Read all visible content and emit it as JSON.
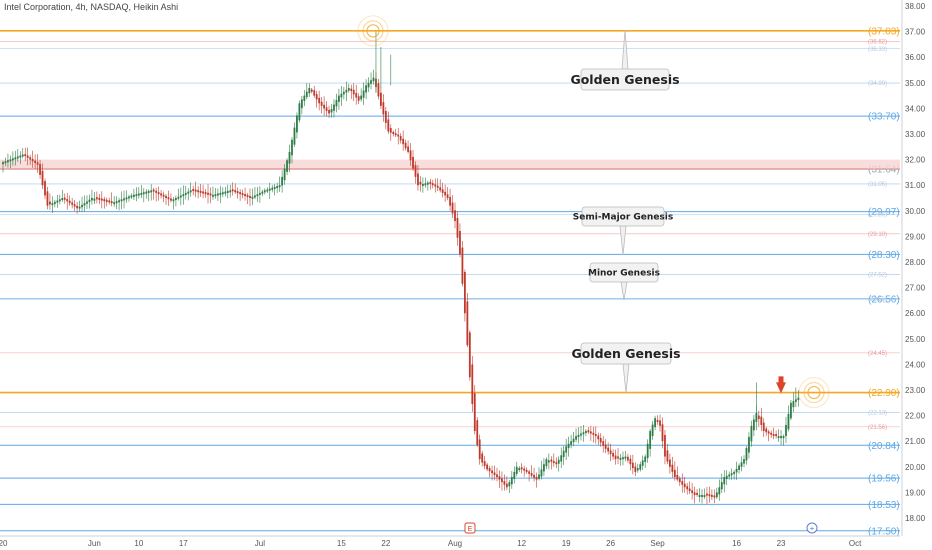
{
  "header": {
    "title": "Intel Corporation, 4h, NASDAQ, Heikin Ashi"
  },
  "colors": {
    "up": "#2e7d46",
    "down": "#c0392b",
    "orange": "#f5a623",
    "blue": "#5ea8e6",
    "red_line": "#e57373",
    "faint_blue": "#9cc6ee",
    "faint_red": "#f2a9a9"
  },
  "chart_data": {
    "type": "candlestick",
    "ylim": [
      17.5,
      38.0
    ],
    "y_ticks": [
      "38.00",
      "37.00",
      "36.00",
      "35.00",
      "34.00",
      "33.00",
      "32.00",
      "31.00",
      "30.00",
      "29.00",
      "28.00",
      "27.00",
      "26.00",
      "25.00",
      "24.00",
      "23.00",
      "22.00",
      "21.00",
      "20.00",
      "19.00",
      "18.00"
    ],
    "x_ticks": [
      {
        "label": "20",
        "i": 0
      },
      {
        "label": "Jun",
        "i": 37
      },
      {
        "label": "10",
        "i": 55
      },
      {
        "label": "17",
        "i": 73
      },
      {
        "label": "Jul",
        "i": 104
      },
      {
        "label": "15",
        "i": 137
      },
      {
        "label": "22",
        "i": 155
      },
      {
        "label": "Aug",
        "i": 183
      },
      {
        "label": "12",
        "i": 210
      },
      {
        "label": "19",
        "i": 228
      },
      {
        "label": "26",
        "i": 246
      },
      {
        "label": "Sep",
        "i": 265
      },
      {
        "label": "16",
        "i": 297
      },
      {
        "label": "23",
        "i": 315
      },
      {
        "label": "Oct",
        "i": 345
      }
    ],
    "levels": [
      {
        "value": 37.03,
        "label": "(37.03)",
        "style": "orange-bold"
      },
      {
        "value": 36.62,
        "label": "(36.62)",
        "style": "faint-red"
      },
      {
        "value": 36.33,
        "label": "(36.33)",
        "style": "faint-blue"
      },
      {
        "value": 34.99,
        "label": "(34.99)",
        "style": "faint-blue"
      },
      {
        "value": 33.7,
        "label": "(33.70)",
        "style": "blue-bold"
      },
      {
        "value": 31.64,
        "label": "(31.64)",
        "style": "zone-bold"
      },
      {
        "value": 31.05,
        "label": "(31.05)",
        "style": "faint-blue"
      },
      {
        "value": 29.97,
        "label": "(29.97)",
        "style": "blue-bold"
      },
      {
        "value": 29.86,
        "label": "(29.86)",
        "style": "faint-blue"
      },
      {
        "value": 29.1,
        "label": "(29.10)",
        "style": "faint-red"
      },
      {
        "value": 28.3,
        "label": "(28.30)",
        "style": "blue-bold"
      },
      {
        "value": 27.52,
        "label": "(27.52)",
        "style": "faint-blue"
      },
      {
        "value": 26.56,
        "label": "(26.56)",
        "style": "blue-bold"
      },
      {
        "value": 26.55,
        "label": "(26.55)",
        "style": "faint-blue"
      },
      {
        "value": 24.45,
        "label": "(24.45)",
        "style": "faint-red"
      },
      {
        "value": 22.9,
        "label": "(22.90)",
        "style": "orange-bold"
      },
      {
        "value": 22.13,
        "label": "(22.13)",
        "style": "faint-blue"
      },
      {
        "value": 21.56,
        "label": "(21.56)",
        "style": "faint-red"
      },
      {
        "value": 20.84,
        "label": "(20.84)",
        "style": "blue-bold"
      },
      {
        "value": 19.56,
        "label": "(19.56)",
        "style": "blue-bold"
      },
      {
        "value": 18.53,
        "label": "(18.53)",
        "style": "blue-bold"
      },
      {
        "value": 17.5,
        "label": "(17.50)",
        "style": "blue-bold"
      }
    ],
    "zone": {
      "from": 31.64,
      "to": 32.0
    },
    "anchors": [
      [
        0,
        31.9
      ],
      [
        8,
        32.2
      ],
      [
        14,
        31.8
      ],
      [
        18,
        30.2
      ],
      [
        24,
        30.5
      ],
      [
        30,
        30.1
      ],
      [
        36,
        30.5
      ],
      [
        44,
        30.3
      ],
      [
        52,
        30.6
      ],
      [
        60,
        30.8
      ],
      [
        68,
        30.4
      ],
      [
        76,
        30.8
      ],
      [
        84,
        30.6
      ],
      [
        92,
        30.8
      ],
      [
        100,
        30.5
      ],
      [
        106,
        30.8
      ],
      [
        112,
        31.0
      ],
      [
        116,
        32.3
      ],
      [
        120,
        34.2
      ],
      [
        124,
        34.8
      ],
      [
        128,
        34.2
      ],
      [
        132,
        33.8
      ],
      [
        136,
        34.5
      ],
      [
        140,
        34.8
      ],
      [
        144,
        34.3
      ],
      [
        147,
        34.9
      ],
      [
        150,
        35.2
      ],
      [
        153,
        34.1
      ],
      [
        156,
        33.1
      ],
      [
        160,
        32.9
      ],
      [
        164,
        32.3
      ],
      [
        168,
        31.0
      ],
      [
        172,
        31.1
      ],
      [
        176,
        30.9
      ],
      [
        180,
        30.5
      ],
      [
        183,
        29.6
      ],
      [
        185,
        28.3
      ],
      [
        187,
        26.0
      ],
      [
        189,
        23.5
      ],
      [
        191,
        21.4
      ],
      [
        193,
        20.3
      ],
      [
        196,
        19.9
      ],
      [
        200,
        19.6
      ],
      [
        204,
        19.2
      ],
      [
        208,
        20.0
      ],
      [
        212,
        19.8
      ],
      [
        216,
        19.5
      ],
      [
        220,
        20.3
      ],
      [
        224,
        20.1
      ],
      [
        228,
        20.8
      ],
      [
        232,
        21.2
      ],
      [
        236,
        21.4
      ],
      [
        240,
        21.2
      ],
      [
        244,
        20.7
      ],
      [
        248,
        20.3
      ],
      [
        252,
        20.4
      ],
      [
        256,
        19.8
      ],
      [
        260,
        20.4
      ],
      [
        262,
        21.4
      ],
      [
        264,
        21.9
      ],
      [
        266,
        21.6
      ],
      [
        268,
        20.4
      ],
      [
        272,
        19.6
      ],
      [
        276,
        19.2
      ],
      [
        280,
        18.9
      ],
      [
        284,
        18.9
      ],
      [
        288,
        18.8
      ],
      [
        292,
        19.6
      ],
      [
        296,
        19.8
      ],
      [
        300,
        20.3
      ],
      [
        303,
        21.6
      ],
      [
        305,
        22.1
      ],
      [
        308,
        21.4
      ],
      [
        312,
        21.2
      ],
      [
        316,
        21.2
      ],
      [
        319,
        22.5
      ],
      [
        322,
        22.7
      ]
    ]
  },
  "annotations": {
    "golden_top": "Golden Genesis",
    "semi_major": "Semi-Major Genesis",
    "minor": "Minor Genesis",
    "golden_bottom": "Golden Genesis",
    "earnings_badge": "E",
    "future_badge": "+"
  }
}
